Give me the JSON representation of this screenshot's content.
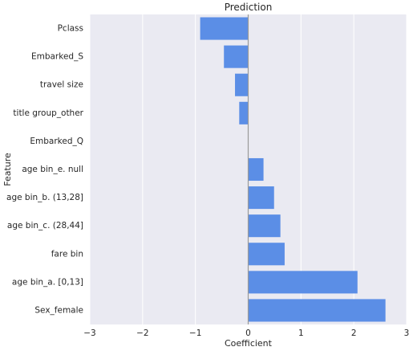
{
  "chart_data": {
    "type": "bar",
    "orientation": "horizontal",
    "title": "Prediction",
    "xlabel": "Coefficient",
    "ylabel": "Feature",
    "xlim": [
      -3,
      3
    ],
    "x_ticks": [
      -3,
      -2,
      -1,
      0,
      1,
      2,
      3
    ],
    "x_tick_labels": [
      "−3",
      "−2",
      "−1",
      "0",
      "1",
      "2",
      "3"
    ],
    "grid": true,
    "categories": [
      "Pclass",
      "Embarked_S",
      "travel size",
      "title group_other",
      "Embarked_Q",
      "age bin_e. null",
      "age bin_b. (13,28]",
      "age bin_c. (28,44]",
      "fare bin",
      "age bin_a. [0,13]",
      "Sex_female"
    ],
    "values": [
      -0.91,
      -0.46,
      -0.25,
      -0.17,
      0.0,
      0.29,
      0.49,
      0.61,
      0.69,
      2.07,
      2.6
    ],
    "colors": {
      "bar": "#5b8ee6",
      "background": "#eaeaf2",
      "grid": "#ffffff",
      "zero_line": "#9a9a9a",
      "text": "#262626"
    }
  }
}
